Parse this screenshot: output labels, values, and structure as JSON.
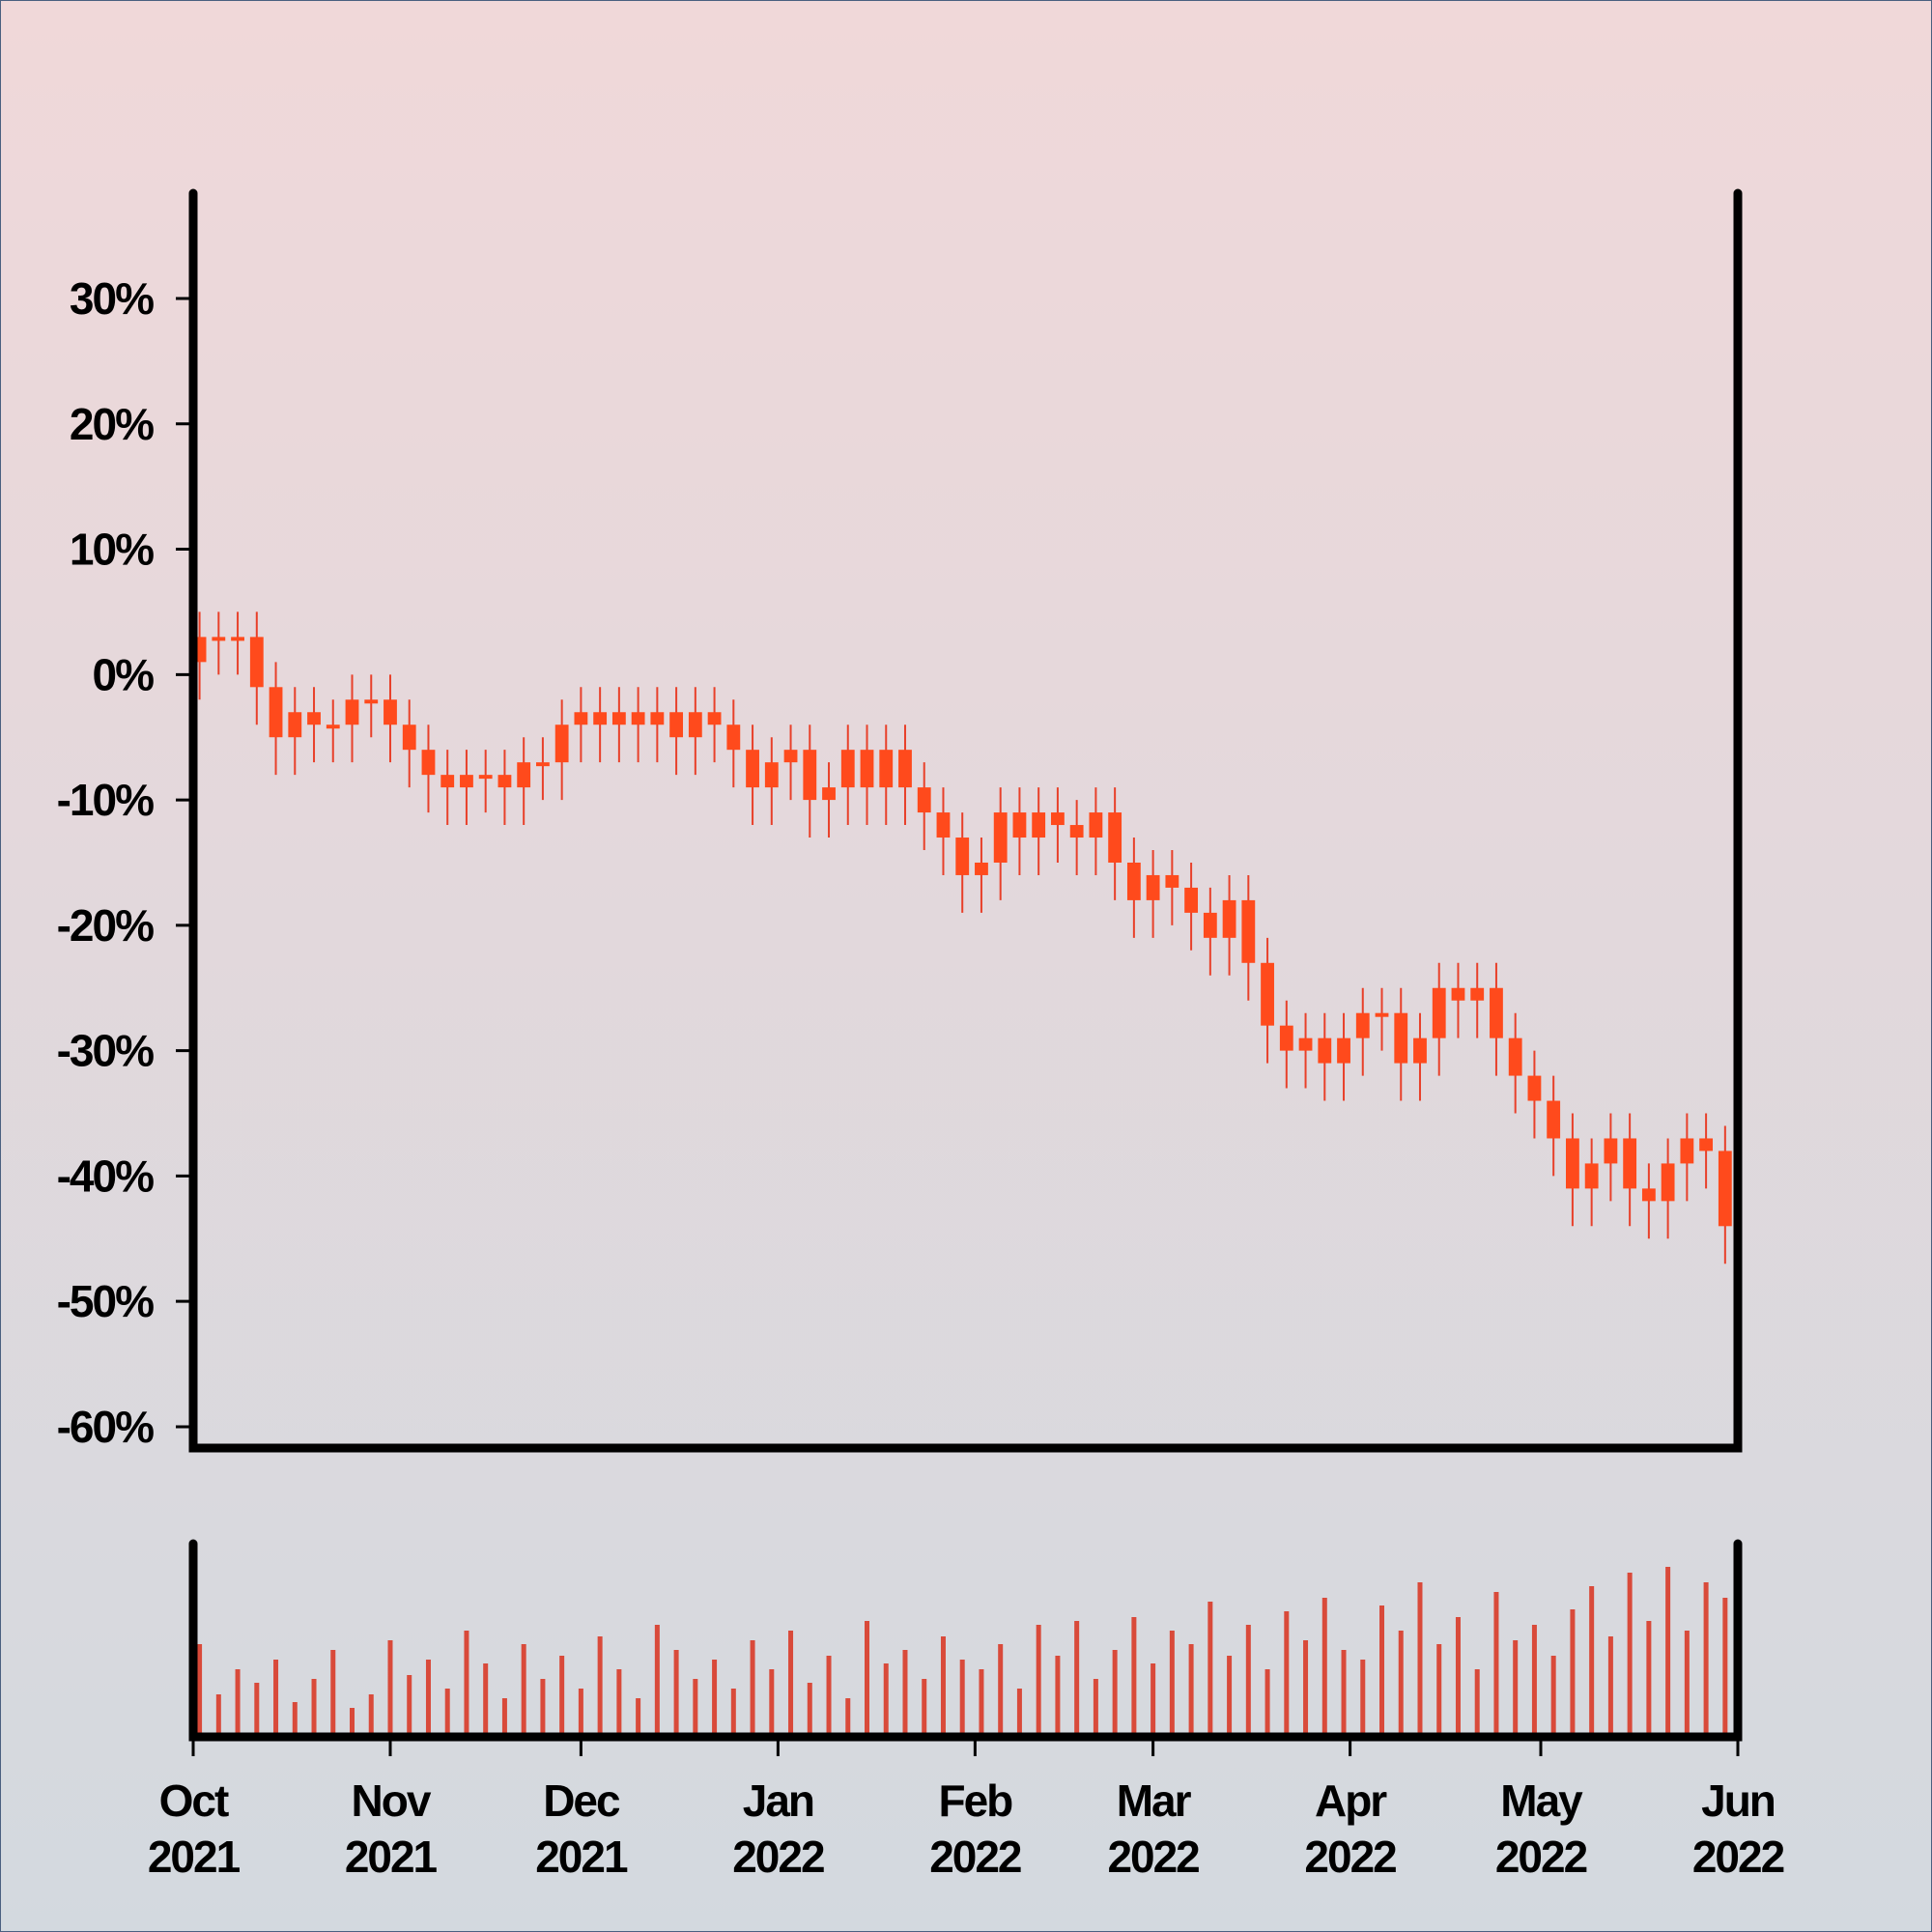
{
  "chart_data": {
    "type": "candlestick",
    "x": [
      1,
      4,
      7,
      10,
      13,
      16,
      19,
      22,
      25,
      28,
      31,
      34,
      37,
      40,
      43,
      46,
      49,
      52,
      55,
      58,
      61,
      64,
      67,
      70,
      73,
      76,
      79,
      82,
      85,
      88,
      91,
      94,
      97,
      100,
      103,
      106,
      109,
      112,
      115,
      118,
      121,
      124,
      127,
      130,
      133,
      136,
      139,
      142,
      145,
      148,
      151,
      154,
      157,
      160,
      163,
      166,
      169,
      172,
      175,
      178,
      181,
      184,
      187,
      190,
      193,
      196,
      199,
      202,
      205,
      208,
      211,
      214,
      217,
      220,
      223,
      226,
      229,
      232,
      235,
      238,
      241
    ],
    "open": [
      1,
      3,
      3,
      3,
      -1,
      -5,
      -3,
      -4,
      -4,
      -2,
      -2,
      -4,
      -6,
      -8,
      -9,
      -8,
      -8,
      -9,
      -7,
      -7,
      -4,
      -3,
      -4,
      -3,
      -4,
      -3,
      -5,
      -3,
      -4,
      -6,
      -9,
      -7,
      -6,
      -10,
      -9,
      -6,
      -9,
      -6,
      -9,
      -11,
      -13,
      -16,
      -15,
      -11,
      -13,
      -11,
      -12,
      -13,
      -11,
      -15,
      -18,
      -16,
      -17,
      -19,
      -21,
      -18,
      -23,
      -28,
      -30,
      -29,
      -31,
      -29,
      -27,
      -27,
      -31,
      -29,
      -25,
      -26,
      -25,
      -29,
      -32,
      -34,
      -37,
      -41,
      -39,
      -37,
      -41,
      -42,
      -39,
      -37,
      -38
    ],
    "high": [
      5,
      5,
      5,
      5,
      1,
      -1,
      -1,
      -2,
      0,
      0,
      0,
      -2,
      -4,
      -6,
      -6,
      -6,
      -6,
      -5,
      -5,
      -2,
      -1,
      -1,
      -1,
      -1,
      -1,
      -1,
      -1,
      -1,
      -2,
      -4,
      -5,
      -4,
      -4,
      -7,
      -4,
      -4,
      -4,
      -4,
      -7,
      -9,
      -11,
      -13,
      -9,
      -9,
      -9,
      -9,
      -10,
      -9,
      -9,
      -13,
      -14,
      -14,
      -15,
      -17,
      -16,
      -16,
      -21,
      -26,
      -27,
      -27,
      -27,
      -25,
      -25,
      -25,
      -27,
      -23,
      -23,
      -23,
      -23,
      -27,
      -30,
      -32,
      -35,
      -37,
      -35,
      -35,
      -39,
      -37,
      -35,
      -35,
      -36
    ],
    "low": [
      -2,
      0,
      0,
      -4,
      -8,
      -8,
      -7,
      -7,
      -7,
      -5,
      -7,
      -9,
      -11,
      -12,
      -12,
      -11,
      -12,
      -12,
      -10,
      -10,
      -7,
      -7,
      -7,
      -7,
      -7,
      -8,
      -8,
      -7,
      -9,
      -12,
      -12,
      -10,
      -13,
      -13,
      -12,
      -12,
      -12,
      -12,
      -14,
      -16,
      -19,
      -19,
      -18,
      -16,
      -16,
      -15,
      -16,
      -16,
      -18,
      -21,
      -21,
      -20,
      -22,
      -24,
      -24,
      -26,
      -31,
      -33,
      -33,
      -34,
      -34,
      -32,
      -30,
      -34,
      -34,
      -32,
      -29,
      -29,
      -32,
      -35,
      -37,
      -40,
      -44,
      -44,
      -42,
      -44,
      -45,
      -45,
      -42,
      -41,
      -47
    ],
    "close": [
      3,
      3,
      3,
      -1,
      -5,
      -3,
      -4,
      -4,
      -2,
      -2,
      -4,
      -6,
      -8,
      -9,
      -8,
      -8,
      -9,
      -7,
      -7,
      -4,
      -3,
      -4,
      -3,
      -4,
      -3,
      -5,
      -3,
      -4,
      -6,
      -9,
      -7,
      -6,
      -10,
      -9,
      -6,
      -9,
      -6,
      -9,
      -11,
      -13,
      -16,
      -15,
      -11,
      -13,
      -11,
      -12,
      -13,
      -11,
      -15,
      -18,
      -16,
      -17,
      -19,
      -21,
      -18,
      -23,
      -28,
      -30,
      -29,
      -31,
      -29,
      -27,
      -27,
      -31,
      -29,
      -25,
      -26,
      -25,
      -29,
      -32,
      -34,
      -37,
      -41,
      -39,
      -37,
      -41,
      -42,
      -39,
      -37,
      -38,
      -44
    ],
    "volume": [
      48,
      22,
      35,
      28,
      40,
      18,
      30,
      45,
      15,
      22,
      50,
      32,
      40,
      25,
      55,
      38,
      20,
      48,
      30,
      42,
      25,
      52,
      35,
      20,
      58,
      45,
      30,
      40,
      25,
      50,
      35,
      55,
      28,
      42,
      20,
      60,
      38,
      45,
      30,
      52,
      40,
      35,
      48,
      25,
      58,
      42,
      60,
      30,
      45,
      62,
      38,
      55,
      48,
      70,
      42,
      58,
      35,
      65,
      50,
      72,
      45,
      40,
      68,
      55,
      80,
      48,
      62,
      35,
      75,
      50,
      58,
      42,
      66,
      78,
      52,
      85,
      60,
      88,
      55,
      80,
      72
    ],
    "volume_ylim": [
      0,
      100
    ],
    "candle_color": "#ff4a1c",
    "wick_color": "#e8402a",
    "volume_color": "#d94a3a",
    "xlim": [
      0,
      243
    ],
    "xticks": [
      {
        "value": 0,
        "label": "Oct 2021"
      },
      {
        "value": 31,
        "label": "Nov 2021"
      },
      {
        "value": 61,
        "label": "Dec 2021"
      },
      {
        "value": 92,
        "label": "Jan 2022"
      },
      {
        "value": 123,
        "label": "Feb 2022"
      },
      {
        "value": 151,
        "label": "Mar 2022"
      },
      {
        "value": 182,
        "label": "Apr 2022"
      },
      {
        "value": 212,
        "label": "May 2022"
      },
      {
        "value": 243,
        "label": "Jun 2022"
      }
    ],
    "ylim": [
      -61.7,
      38.4
    ],
    "yticks": [
      {
        "value": -60,
        "label": "-60%"
      },
      {
        "value": -50,
        "label": "-50%"
      },
      {
        "value": -40,
        "label": "-40%"
      },
      {
        "value": -30,
        "label": "-30%"
      },
      {
        "value": -20,
        "label": "-20%"
      },
      {
        "value": -10,
        "label": "-10%"
      },
      {
        "value": 0,
        "label": "0%"
      },
      {
        "value": 10,
        "label": "10%"
      },
      {
        "value": 20,
        "label": "20%"
      },
      {
        "value": 30,
        "label": "30%"
      }
    ]
  }
}
